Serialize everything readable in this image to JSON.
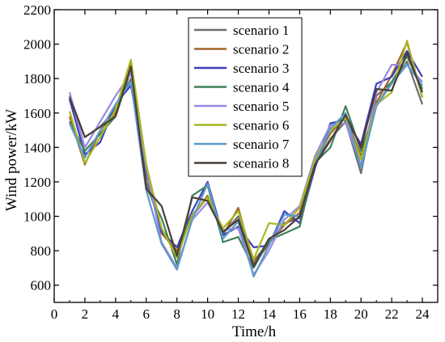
{
  "chart_data": {
    "type": "line",
    "title": "",
    "xlabel": "Time/h",
    "ylabel": "Wind power/kW",
    "xlim": [
      0,
      25
    ],
    "ylim": [
      500,
      2200
    ],
    "x_ticks": [
      0,
      2,
      4,
      6,
      8,
      10,
      12,
      14,
      16,
      18,
      20,
      22,
      24
    ],
    "y_ticks": [
      600,
      800,
      1000,
      1200,
      1400,
      1600,
      1800,
      2000,
      2200
    ],
    "grid": false,
    "legend_position": "top-center",
    "x": [
      1,
      2,
      3,
      4,
      5,
      6,
      7,
      8,
      9,
      10,
      11,
      12,
      13,
      14,
      15,
      16,
      17,
      18,
      19,
      20,
      21,
      22,
      23,
      24
    ],
    "series": [
      {
        "name": "scenario 1",
        "color": "#6e6e6e",
        "values": [
          1700,
          1460,
          1520,
          1620,
          1800,
          1200,
          930,
          780,
          1000,
          1110,
          900,
          1000,
          740,
          850,
          960,
          990,
          1320,
          1450,
          1550,
          1250,
          1700,
          1780,
          1900,
          1650
        ]
      },
      {
        "name": "scenario 2",
        "color": "#a0642a",
        "values": [
          1580,
          1300,
          1500,
          1600,
          1880,
          1250,
          900,
          800,
          1000,
          1120,
          890,
          1050,
          720,
          840,
          950,
          1020,
          1330,
          1480,
          1580,
          1350,
          1660,
          1820,
          2010,
          1690
        ]
      },
      {
        "name": "scenario 3",
        "color": "#3d3fbf",
        "values": [
          1680,
          1360,
          1430,
          1650,
          1760,
          1260,
          910,
          820,
          1030,
          1200,
          890,
          940,
          820,
          830,
          1030,
          960,
          1280,
          1540,
          1560,
          1420,
          1770,
          1810,
          1960,
          1810
        ]
      },
      {
        "name": "scenario 4",
        "color": "#3f7f58",
        "values": [
          1550,
          1380,
          1480,
          1580,
          1850,
          1170,
          990,
          720,
          1120,
          1180,
          850,
          880,
          700,
          860,
          900,
          940,
          1310,
          1400,
          1640,
          1380,
          1640,
          1780,
          1930,
          1740
        ]
      },
      {
        "name": "scenario 5",
        "color": "#9a88e0",
        "values": [
          1720,
          1400,
          1550,
          1700,
          1830,
          1280,
          850,
          700,
          980,
          1080,
          920,
          930,
          660,
          800,
          980,
          1060,
          1350,
          1530,
          1540,
          1300,
          1720,
          1880,
          1880,
          1780
        ]
      },
      {
        "name": "scenario 6",
        "color": "#a8b820",
        "values": [
          1610,
          1310,
          1460,
          1620,
          1910,
          1300,
          930,
          760,
          1010,
          1110,
          930,
          1030,
          750,
          960,
          950,
          1050,
          1330,
          1500,
          1570,
          1330,
          1650,
          1720,
          2020,
          1690
        ]
      },
      {
        "name": "scenario 7",
        "color": "#5b9bc9",
        "values": [
          1540,
          1340,
          1500,
          1650,
          1780,
          1150,
          840,
          690,
          980,
          1190,
          870,
          970,
          650,
          830,
          1010,
          1000,
          1300,
          1510,
          1600,
          1280,
          1640,
          1770,
          1880,
          1760
        ]
      },
      {
        "name": "scenario 8",
        "color": "#4a3e36",
        "values": [
          1690,
          1460,
          1520,
          1580,
          1870,
          1160,
          1060,
          770,
          1110,
          1090,
          910,
          980,
          710,
          870,
          920,
          1000,
          1300,
          1440,
          1590,
          1400,
          1740,
          1730,
          1950,
          1720
        ]
      }
    ]
  }
}
